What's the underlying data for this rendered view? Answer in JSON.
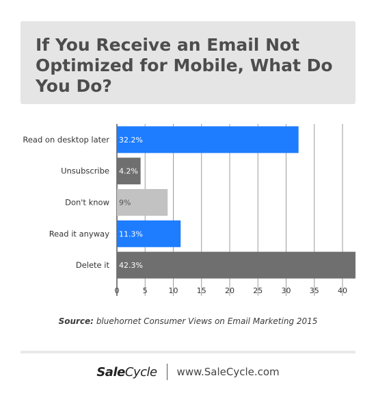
{
  "title": "If You Receive an Email Not Optimized for Mobile, What Do You Do?",
  "source": {
    "label": "Source:",
    "text": "bluehornet Consumer Views on Email Marketing 2015"
  },
  "footer": {
    "logo_prefix": "Sale",
    "logo_suffix": "Cycle",
    "url": "www.SaleCycle.com"
  },
  "chart_data": {
    "type": "bar",
    "orientation": "horizontal",
    "title": "If You Receive an Email Not Optimized for Mobile, What Do You Do?",
    "categories": [
      "Read on desktop later",
      "Unsubscribe",
      "Don't know",
      "Read it anyway",
      "Delete it"
    ],
    "values": [
      32.2,
      4.2,
      9,
      11.3,
      42.3
    ],
    "value_labels": [
      "32.2%",
      "4.2%",
      "9%",
      "11.3%",
      "42.3%"
    ],
    "bar_colors": [
      "#1e7cff",
      "#6f6f6f",
      "#c2c2c2",
      "#1e7cff",
      "#6f6f6f"
    ],
    "label_colors": [
      "#ffffff",
      "#ffffff",
      "#555555",
      "#ffffff",
      "#ffffff"
    ],
    "xticks": [
      0,
      5,
      10,
      15,
      20,
      25,
      30,
      35,
      40
    ],
    "xlim": [
      0,
      42.3
    ],
    "grid": true,
    "xlabel": "",
    "ylabel": ""
  }
}
